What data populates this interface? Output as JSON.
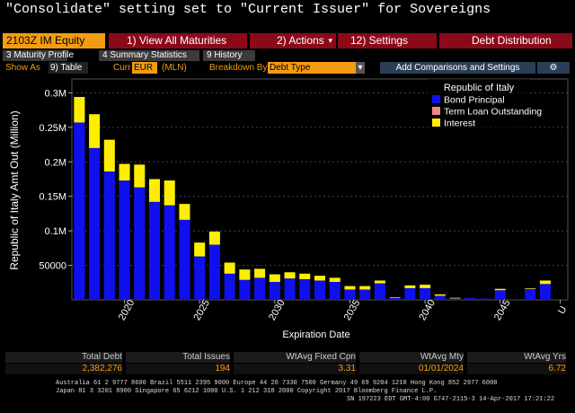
{
  "title": "\"Consolidate\" setting set to \"Current Issuer\" for Sovereigns",
  "toolbar": {
    "ticker": "2103Z IM Equity",
    "view_all": "1) View All Maturities",
    "actions": "2) Actions",
    "settings": "12) Settings",
    "debt_distribution": "Debt Distribution"
  },
  "tabs": [
    {
      "label": "3 Maturity Profile"
    },
    {
      "label": "4 Summary Statistics"
    },
    {
      "label": "9 History"
    }
  ],
  "options": {
    "show_as_label": "Show As",
    "show_as_value": "9) Table",
    "curr_label": "Curr",
    "curr_value": "EUR",
    "units": "(MLN)",
    "breakdown_label": "Breakdown By",
    "breakdown_value": "Debt Type",
    "add_comparisons": "Add Comparisons and Settings"
  },
  "chart_data": {
    "type": "bar",
    "stacked": true,
    "ylabel": "Republic of Italy Amt Out (Million)",
    "xlabel": "Expiration Date",
    "ylim": [
      0,
      320000
    ],
    "yticks": [
      {
        "value": 50000,
        "label": "50000"
      },
      {
        "value": 100000,
        "label": "0.1M"
      },
      {
        "value": 150000,
        "label": "0.15M"
      },
      {
        "value": 200000,
        "label": "0.2M"
      },
      {
        "value": 250000,
        "label": "0.25M"
      },
      {
        "value": 300000,
        "label": "0.3M"
      }
    ],
    "xticks": [
      "2020",
      "2025",
      "2030",
      "2035",
      "2040",
      "2045",
      "U"
    ],
    "legend_title": "Republic of Italy",
    "legend_position": "top-right",
    "categories": [
      "2017",
      "2018",
      "2019",
      "2020",
      "2021",
      "2022",
      "2023",
      "2024",
      "2025",
      "2026",
      "2027",
      "2028",
      "2029",
      "2030",
      "2031",
      "2032",
      "2033",
      "2034",
      "2035",
      "2036",
      "2037",
      "2038",
      "2039",
      "2040",
      "2041",
      "2042",
      "2043",
      "2044",
      "2045",
      "2046",
      "2047",
      "2048",
      "U"
    ],
    "series": [
      {
        "name": "Bond Principal",
        "color": "#1010ee",
        "values": [
          257000,
          220000,
          186000,
          173000,
          163000,
          142000,
          137000,
          116000,
          63000,
          80000,
          38000,
          29000,
          32000,
          26000,
          31000,
          30000,
          28000,
          26000,
          15000,
          15000,
          24000,
          3000,
          17000,
          17000,
          6000,
          2000,
          3000,
          2000,
          14000,
          1000,
          16000,
          23000,
          1000
        ]
      },
      {
        "name": "Term Loan Outstanding",
        "color": "#ee8888",
        "values": [
          0,
          0,
          0,
          0,
          0,
          0,
          0,
          0,
          0,
          0,
          0,
          0,
          0,
          0,
          0,
          0,
          0,
          0,
          0,
          0,
          0,
          0,
          0,
          0,
          0,
          0,
          0,
          0,
          0,
          0,
          0,
          0,
          0
        ]
      },
      {
        "name": "Interest",
        "color": "#ffee00",
        "values": [
          37000,
          49000,
          46000,
          24000,
          33000,
          33000,
          36000,
          23000,
          20000,
          19000,
          16000,
          15000,
          13000,
          11000,
          9000,
          8000,
          7000,
          6000,
          5000,
          5000,
          4000,
          1000,
          4000,
          5000,
          2000,
          1000,
          0,
          0,
          2000,
          0,
          1000,
          5000,
          0
        ]
      }
    ]
  },
  "summary": {
    "headers": [
      "Total Debt",
      "Total Issues",
      "WtAvg Fixed Cpn",
      "WtAvg Mty",
      "WtAvg Yrs"
    ],
    "values": [
      "2,382,276",
      "194",
      "3.31",
      "01/01/2024",
      "6.72"
    ]
  },
  "footer": {
    "line1": "Australia 61 2 9777 8600 Brazil 5511 2395 9000 Europe 44 20 7330 7500 Germany 49 69 9204 1210 Hong Kong 852 2977 6000",
    "line2": "Japan 81 3 3201 8900       Singapore 65 6212 1000       U.S. 1 212 318 2000              Copyright 2017 Bloomberg Finance L.P.",
    "line3": "SN 197223 EDT  GMT-4:00 G747-2115-3 14-Apr-2017 17:21:22"
  }
}
